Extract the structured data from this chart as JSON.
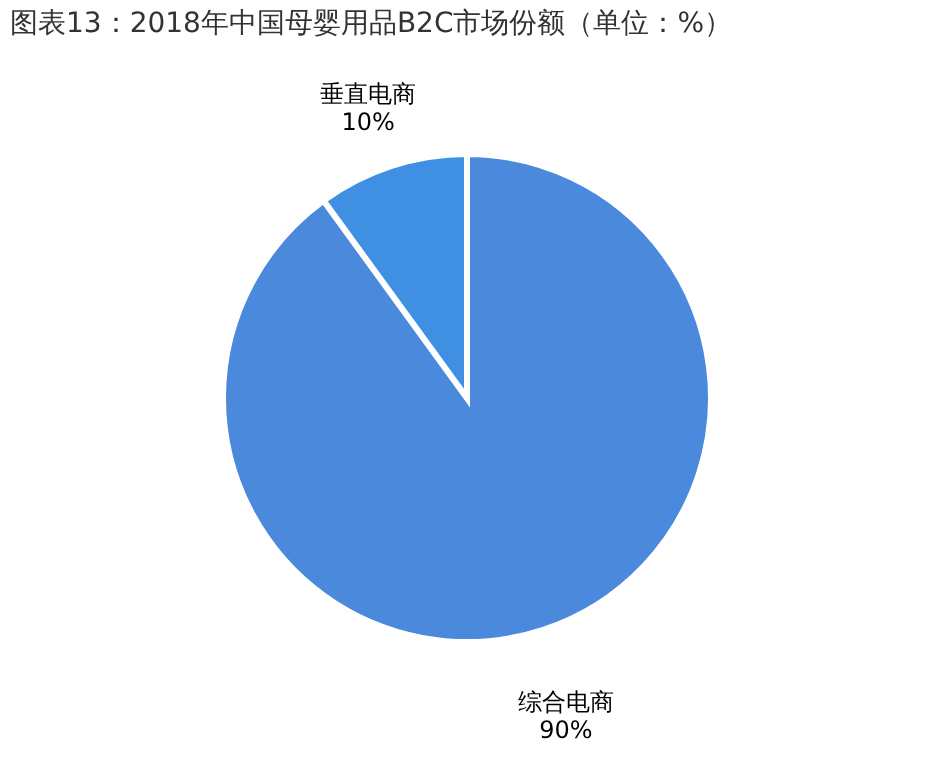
{
  "chart_data": {
    "type": "pie",
    "title": "图表13：2018年中国母婴用品B2C市场份额（单位：%）",
    "categories": [
      "综合电商",
      "垂直电商"
    ],
    "values": [
      90,
      10
    ],
    "colors": [
      "#4a89dc",
      "#3f8fe3"
    ],
    "value_labels": [
      "90%",
      "10%"
    ]
  }
}
